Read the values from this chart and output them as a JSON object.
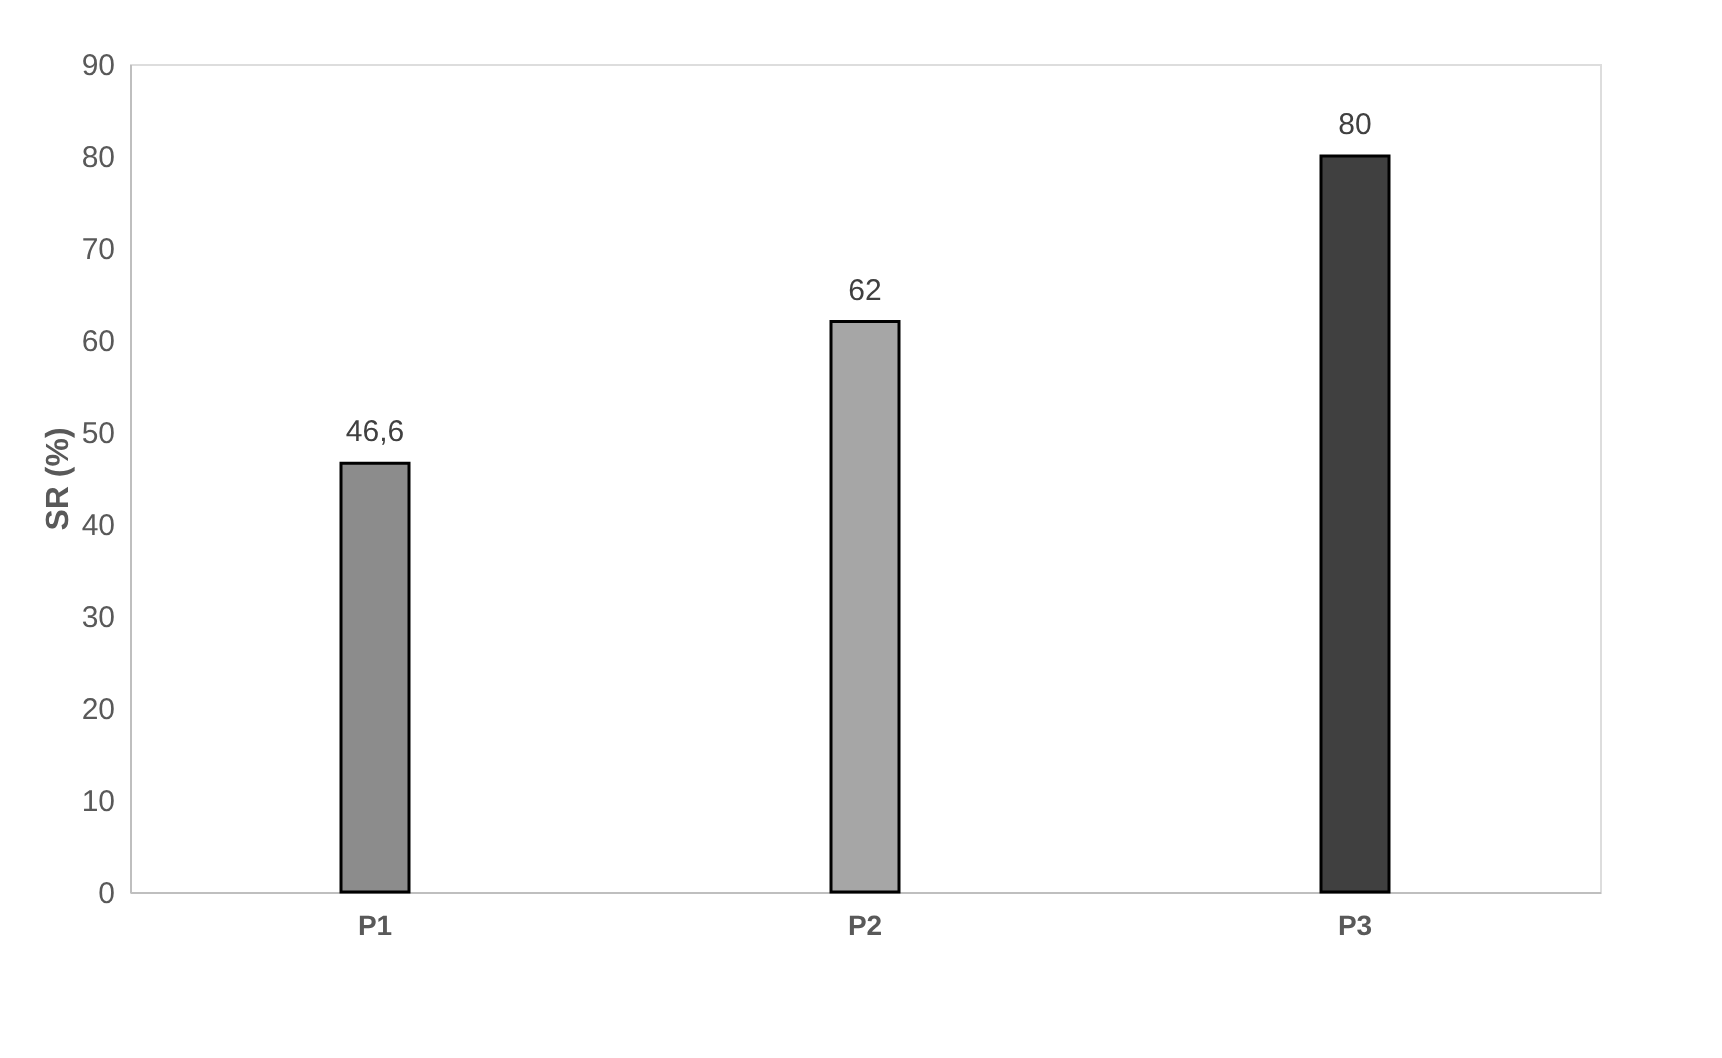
{
  "chart_data": {
    "type": "bar",
    "ylabel": "SR (%)",
    "categories": [
      "P1",
      "P2",
      "P3"
    ],
    "values": [
      46.6,
      62,
      80
    ],
    "colors": [
      "#8c8c8c",
      "#a6a6a6",
      "#404040"
    ],
    "ylim": [
      0,
      90
    ],
    "yticks": [
      0,
      10,
      20,
      30,
      40,
      50,
      60,
      70,
      80,
      90
    ],
    "value_labels": [
      "46,6",
      "62",
      "80"
    ],
    "grid": false
  }
}
